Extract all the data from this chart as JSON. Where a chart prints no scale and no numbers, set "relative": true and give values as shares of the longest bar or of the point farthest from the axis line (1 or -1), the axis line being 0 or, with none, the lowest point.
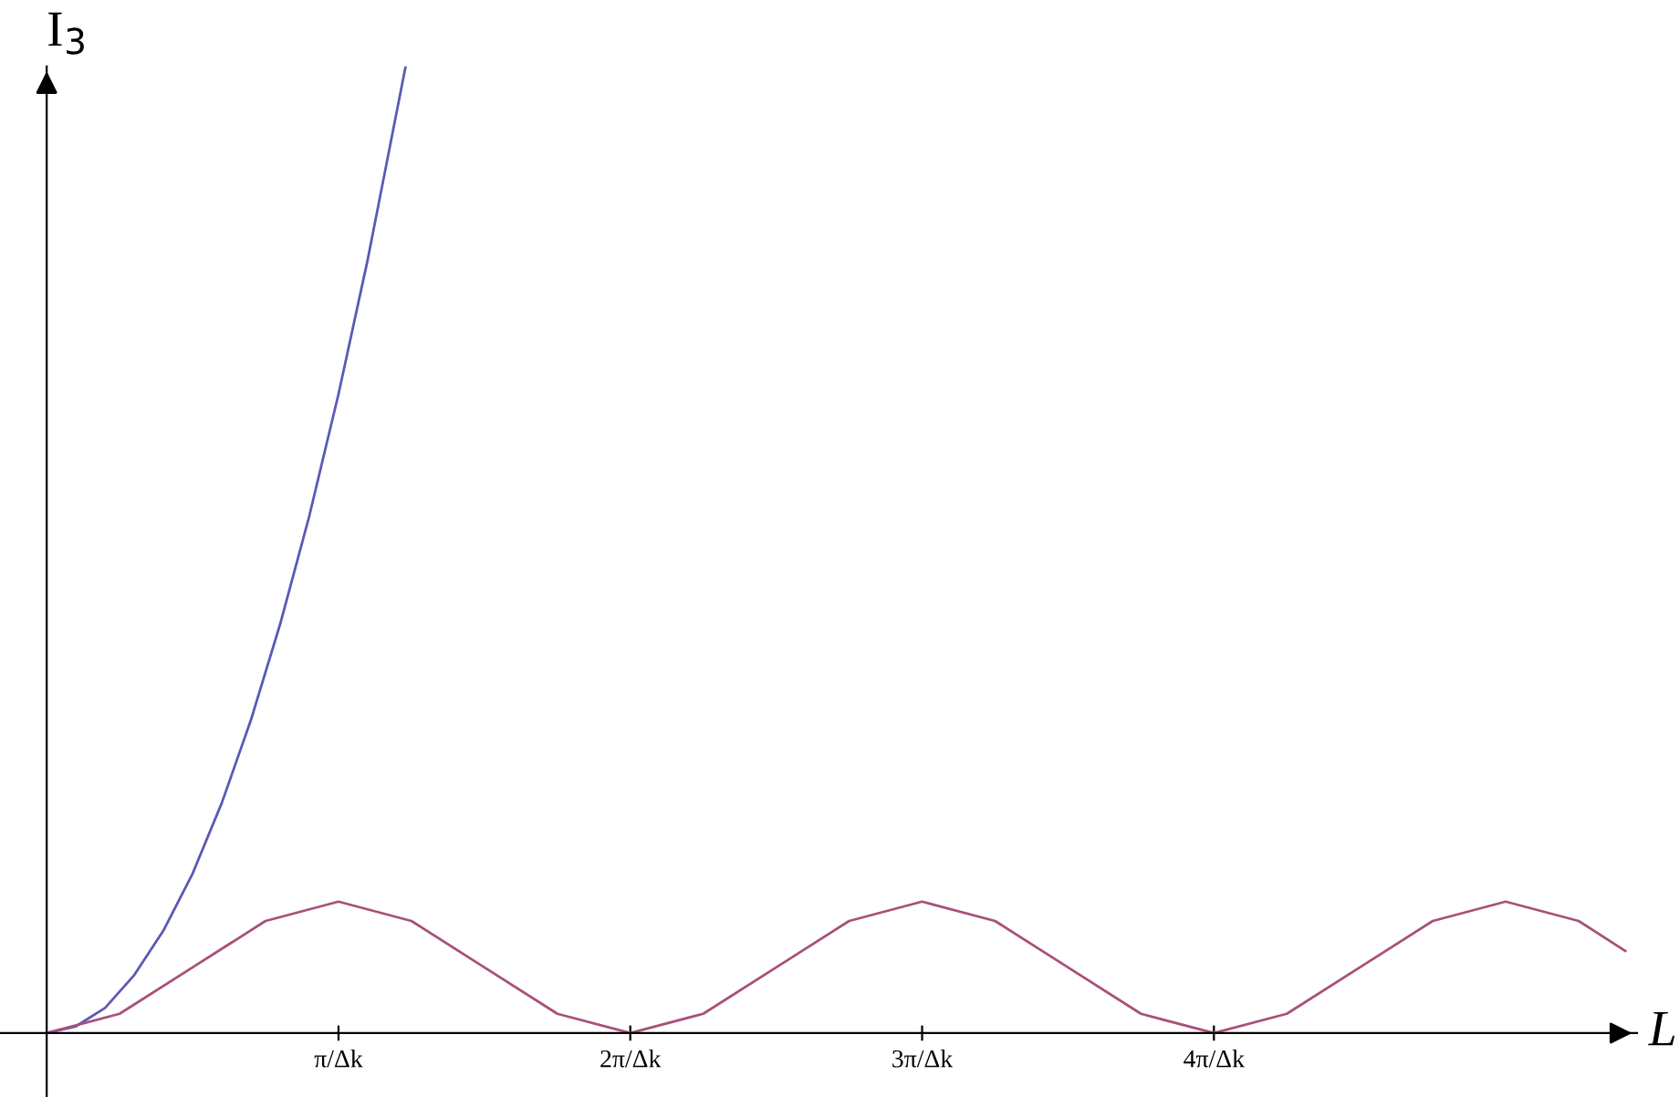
{
  "chart_data": {
    "type": "line",
    "relative": true,
    "xlabel": "L",
    "ylabel": "I$_{3}$",
    "xlim": [
      -0.16,
      5.45
    ],
    "xticks": [
      {
        "value": 1,
        "label": "π/Δk"
      },
      {
        "value": 2,
        "label": "2π/Δk"
      },
      {
        "value": 3,
        "label": "3π/Δk"
      },
      {
        "value": 4,
        "label": "4π/Δk"
      }
    ],
    "grid": false,
    "legend": false,
    "marker": "none",
    "line_style": "solid",
    "series": [
      {
        "color": "#5a5ab4",
        "x": [
          0,
          0.1,
          0.2,
          0.3,
          0.4,
          0.5,
          0.6,
          0.7,
          0.8,
          0.9,
          1.0,
          1.1,
          1.23
        ],
        "values": [
          0,
          0.007,
          0.026,
          0.06,
          0.106,
          0.165,
          0.238,
          0.324,
          0.423,
          0.535,
          0.661,
          0.8,
          1.0
        ]
      },
      {
        "color": "#a8507a",
        "x": [
          0,
          0.25,
          0.5,
          0.75,
          1,
          1.25,
          1.5,
          1.75,
          2,
          2.25,
          2.5,
          2.75,
          3,
          3.25,
          3.5,
          3.75,
          4,
          4.25,
          4.5,
          4.75,
          5,
          5.25,
          5.41
        ],
        "values": [
          0,
          0.02,
          0.068,
          0.116,
          0.136,
          0.116,
          0.068,
          0.02,
          0,
          0.02,
          0.068,
          0.116,
          0.136,
          0.116,
          0.068,
          0.02,
          0,
          0.02,
          0.068,
          0.116,
          0.136,
          0.116,
          0.085
        ]
      }
    ]
  }
}
